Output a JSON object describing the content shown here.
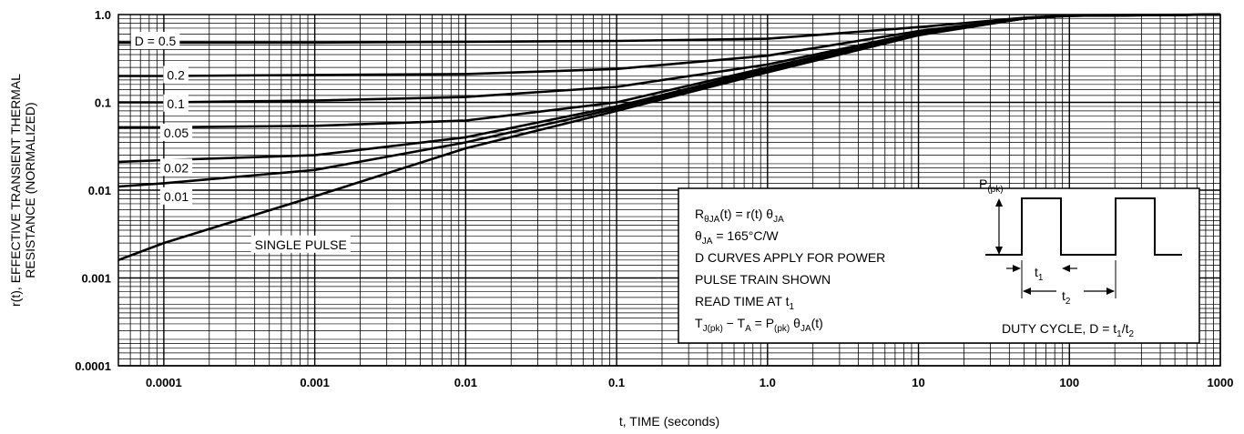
{
  "chart_data": {
    "type": "line",
    "xlabel": "t, TIME (seconds)",
    "ylabel_line1": "r(t), EFFECTIVE TRANSIENT THERMAL",
    "ylabel_line2": "RESISTANCE (NORMALIZED)",
    "x_scale": "log",
    "y_scale": "log",
    "xlim": [
      5e-05,
      1000
    ],
    "ylim": [
      0.0001,
      1.0
    ],
    "grid": true,
    "x_ticks": [
      {
        "value": 0.0001,
        "label": "0.0001"
      },
      {
        "value": 0.001,
        "label": "0.001"
      },
      {
        "value": 0.01,
        "label": "0.01"
      },
      {
        "value": 0.1,
        "label": "0.1"
      },
      {
        "value": 1,
        "label": "1.0"
      },
      {
        "value": 10,
        "label": "10"
      },
      {
        "value": 100,
        "label": "100"
      },
      {
        "value": 1000,
        "label": "1000"
      }
    ],
    "y_ticks": [
      {
        "value": 1,
        "label": "1.0"
      },
      {
        "value": 0.1,
        "label": "0.1"
      },
      {
        "value": 0.01,
        "label": "0.01"
      },
      {
        "value": 0.001,
        "label": "0.001"
      },
      {
        "value": 0.0001,
        "label": "0.0001"
      }
    ],
    "series": [
      {
        "name": "D = 0.5",
        "label_at": [
          6.4e-05,
          0.5
        ],
        "points": [
          [
            5e-05,
            0.48
          ],
          [
            0.0001,
            0.48
          ],
          [
            0.001,
            0.48
          ],
          [
            0.01,
            0.49
          ],
          [
            0.1,
            0.5
          ],
          [
            1,
            0.53
          ],
          [
            10,
            0.72
          ],
          [
            50,
            0.92
          ],
          [
            100,
            0.98
          ],
          [
            1000,
            1.0
          ]
        ]
      },
      {
        "name": "0.2",
        "label_at": [
          0.000105,
          0.205
        ],
        "points": [
          [
            5e-05,
            0.2
          ],
          [
            0.0001,
            0.2
          ],
          [
            0.001,
            0.205
          ],
          [
            0.01,
            0.21
          ],
          [
            0.1,
            0.24
          ],
          [
            1,
            0.34
          ],
          [
            10,
            0.65
          ],
          [
            50,
            0.9
          ],
          [
            100,
            0.97
          ],
          [
            1000,
            1.0
          ]
        ]
      },
      {
        "name": "0.1",
        "label_at": [
          0.000105,
          0.097
        ],
        "points": [
          [
            5e-05,
            0.1
          ],
          [
            0.0001,
            0.1
          ],
          [
            0.001,
            0.105
          ],
          [
            0.01,
            0.115
          ],
          [
            0.1,
            0.15
          ],
          [
            1,
            0.27
          ],
          [
            10,
            0.62
          ],
          [
            50,
            0.9
          ],
          [
            100,
            0.97
          ],
          [
            1000,
            1.0
          ]
        ]
      },
      {
        "name": "0.05",
        "label_at": [
          0.0001,
          0.045
        ],
        "points": [
          [
            5e-05,
            0.052
          ],
          [
            0.0001,
            0.052
          ],
          [
            0.001,
            0.054
          ],
          [
            0.01,
            0.062
          ],
          [
            0.1,
            0.1
          ],
          [
            1,
            0.25
          ],
          [
            10,
            0.6
          ],
          [
            50,
            0.9
          ],
          [
            100,
            0.97
          ],
          [
            1000,
            1.0
          ]
        ]
      },
      {
        "name": "0.02",
        "label_at": [
          0.0001,
          0.018
        ],
        "points": [
          [
            5e-05,
            0.021
          ],
          [
            0.0001,
            0.022
          ],
          [
            0.001,
            0.025
          ],
          [
            0.01,
            0.04
          ],
          [
            0.1,
            0.09
          ],
          [
            1,
            0.24
          ],
          [
            10,
            0.6
          ],
          [
            50,
            0.9
          ],
          [
            100,
            0.97
          ],
          [
            1000,
            1.0
          ]
        ]
      },
      {
        "name": "0.01",
        "label_at": [
          0.0001,
          0.0085
        ],
        "points": [
          [
            5e-05,
            0.011
          ],
          [
            0.0001,
            0.012
          ],
          [
            0.001,
            0.017
          ],
          [
            0.01,
            0.035
          ],
          [
            0.1,
            0.085
          ],
          [
            1,
            0.23
          ],
          [
            10,
            0.6
          ],
          [
            50,
            0.9
          ],
          [
            100,
            0.97
          ],
          [
            1000,
            1.0
          ]
        ]
      },
      {
        "name": "SINGLE PULSE",
        "label_at": [
          0.0004,
          0.0024
        ],
        "points": [
          [
            5e-05,
            0.0016
          ],
          [
            0.0001,
            0.0025
          ],
          [
            0.001,
            0.0085
          ],
          [
            0.01,
            0.03
          ],
          [
            0.1,
            0.08
          ],
          [
            1,
            0.22
          ],
          [
            10,
            0.58
          ],
          [
            50,
            0.9
          ],
          [
            100,
            0.97
          ],
          [
            1000,
            1.0
          ]
        ]
      }
    ],
    "annotation_box": {
      "lines": [
        {
          "segments": [
            {
              "t": "R"
            },
            {
              "t": "θJA",
              "sub": true
            },
            {
              "t": "(t) = r(t) θ"
            },
            {
              "t": "JA",
              "sub": true
            }
          ]
        },
        {
          "segments": [
            {
              "t": "θ"
            },
            {
              "t": "JA",
              "sub": true
            },
            {
              "t": " = 165°C/W"
            }
          ]
        },
        {
          "segments": [
            {
              "t": "D CURVES APPLY FOR POWER"
            }
          ]
        },
        {
          "segments": [
            {
              "t": "PULSE TRAIN SHOWN"
            }
          ]
        },
        {
          "segments": [
            {
              "t": "READ TIME AT t"
            },
            {
              "t": "1",
              "sub": true
            }
          ]
        },
        {
          "segments": [
            {
              "t": "T"
            },
            {
              "t": "J(pk)",
              "sub": true
            },
            {
              "t": " − T"
            },
            {
              "t": "A",
              "sub": true
            },
            {
              "t": " = P"
            },
            {
              "t": "(pk)",
              "sub": true
            },
            {
              "t": " θ"
            },
            {
              "t": "JA",
              "sub": true
            },
            {
              "t": "(t)"
            }
          ]
        }
      ],
      "pulse_label": {
        "segments": [
          {
            "t": "P"
          },
          {
            "t": "(pk)",
            "sub": true
          }
        ]
      },
      "t1_label": {
        "segments": [
          {
            "t": "t"
          },
          {
            "t": "1",
            "sub": true
          }
        ]
      },
      "t2_label": {
        "segments": [
          {
            "t": "t"
          },
          {
            "t": "2",
            "sub": true
          }
        ]
      },
      "duty_label": {
        "segments": [
          {
            "t": "DUTY CYCLE, D = t"
          },
          {
            "t": "1",
            "sub": true
          },
          {
            "t": "/t"
          },
          {
            "t": "2",
            "sub": true
          }
        ]
      }
    }
  }
}
